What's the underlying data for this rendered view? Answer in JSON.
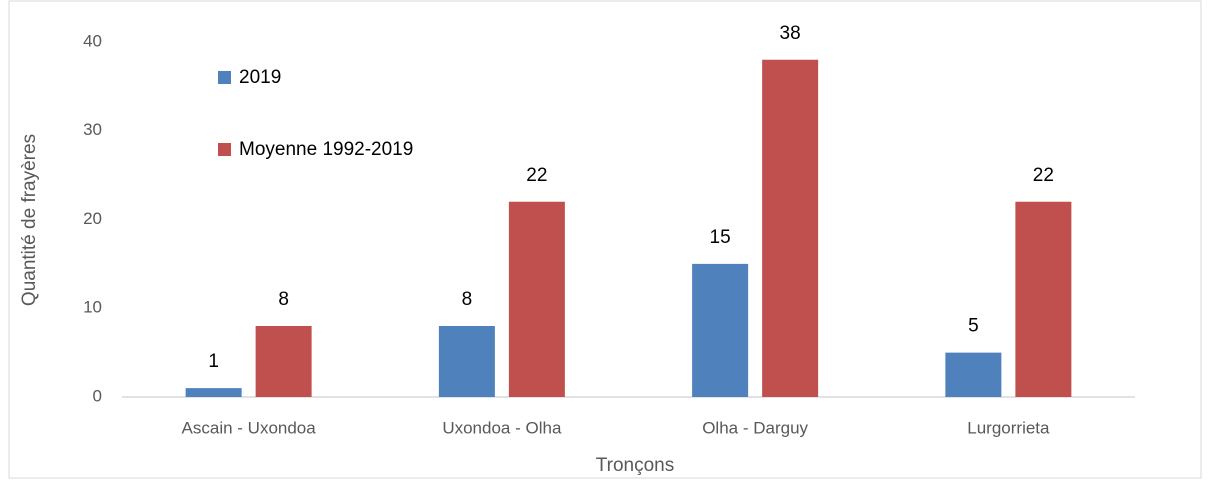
{
  "chart_data": {
    "type": "bar",
    "x_label": "Tronçons",
    "y_label": "Quantité de frayères",
    "categories": [
      "Ascain - Uxondoa",
      "Uxondoa - Olha",
      "Olha - Darguy",
      "Lurgorrieta"
    ],
    "series": [
      {
        "name": "2019",
        "color": "#4f81bd",
        "values": [
          1,
          8,
          15,
          5
        ]
      },
      {
        "name": "Moyenne 1992-2019",
        "color": "#c0504d",
        "values": [
          8,
          22,
          38,
          22
        ]
      }
    ],
    "ylim": [
      0,
      40
    ],
    "yticks": [
      0,
      10,
      20,
      30,
      40
    ],
    "grid": false,
    "legend": "upper-left",
    "data_labels": true
  }
}
